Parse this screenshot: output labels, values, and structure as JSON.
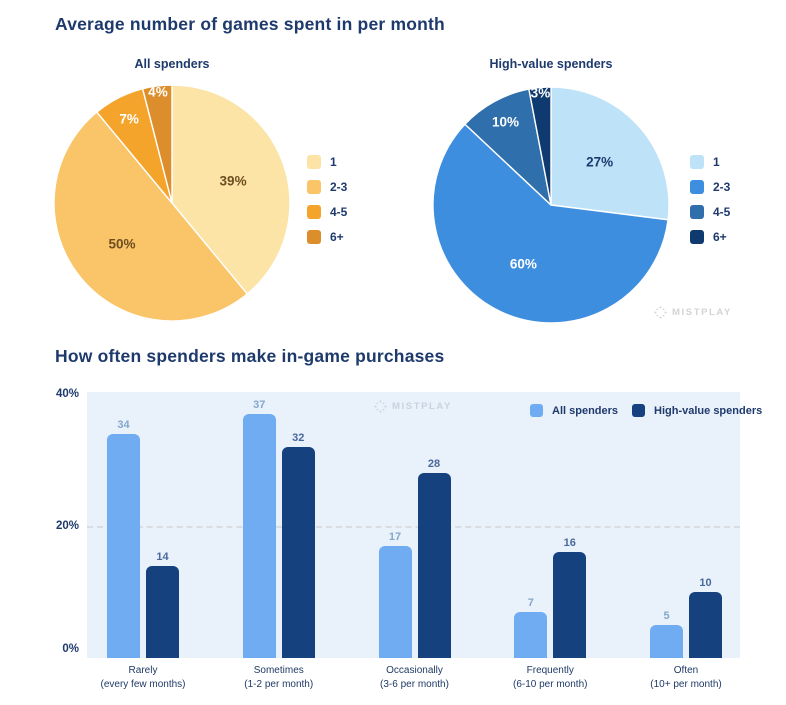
{
  "page": {
    "pie_section_title": "Average number of games spent in per month",
    "bar_section_title": "How often spenders make in-game purchases",
    "watermark_text": "MISTPLAY"
  },
  "chart_data": [
    {
      "type": "pie",
      "title": "All spenders",
      "labels": [
        "1",
        "2-3",
        "4-5",
        "6+"
      ],
      "values": [
        39,
        50,
        7,
        4
      ],
      "unit": "%",
      "colors": [
        "#FCE3A6",
        "#FAC468",
        "#F5A42B",
        "#DD8E2C"
      ],
      "label_colors": [
        "#6E4E20",
        "#6E4E20",
        "#FFFFFF",
        "#FFFFFF"
      ],
      "legend_position": "right",
      "start_angle_deg": 0,
      "direction": "clockwise"
    },
    {
      "type": "pie",
      "title": "High-value spenders",
      "labels": [
        "1",
        "2-3",
        "4-5",
        "6+"
      ],
      "values": [
        27,
        60,
        10,
        3
      ],
      "unit": "%",
      "colors": [
        "#BEE2F8",
        "#3E8EE0",
        "#2E6FAC",
        "#0E3A70"
      ],
      "label_colors": [
        "#1E3A6D",
        "#FFFFFF",
        "#FFFFFF",
        "#FFFFFF"
      ],
      "legend_position": "right",
      "start_angle_deg": 0,
      "direction": "clockwise"
    },
    {
      "type": "bar",
      "title": "How often spenders make in-game purchases",
      "categories": [
        {
          "line1": "Rarely",
          "line2": "(every few months)"
        },
        {
          "line1": "Sometimes",
          "line2": "(1-2 per month)"
        },
        {
          "line1": "Occasionally",
          "line2": "(3-6 per month)"
        },
        {
          "line1": "Frequently",
          "line2": "(6-10 per month)"
        },
        {
          "line1": "Often",
          "line2": "(10+ per month)"
        }
      ],
      "series": [
        {
          "name": "All spenders",
          "color": "#6FACF2",
          "label_color": "#84A8CC",
          "values": [
            34,
            37,
            17,
            7,
            5
          ]
        },
        {
          "name": "High-value spenders",
          "color": "#15417F",
          "label_color": "#48699C",
          "values": [
            14,
            32,
            28,
            16,
            10
          ]
        }
      ],
      "y_ticks": [
        {
          "label": "40%",
          "value": 40
        },
        {
          "label": "20%",
          "value": 20
        },
        {
          "label": "0%",
          "value": 0
        }
      ],
      "ylim": [
        0,
        40
      ],
      "gridlines": [
        20
      ],
      "legend_position": "top-right",
      "plot_background": "#E9F1FA",
      "grid_on": true
    }
  ]
}
